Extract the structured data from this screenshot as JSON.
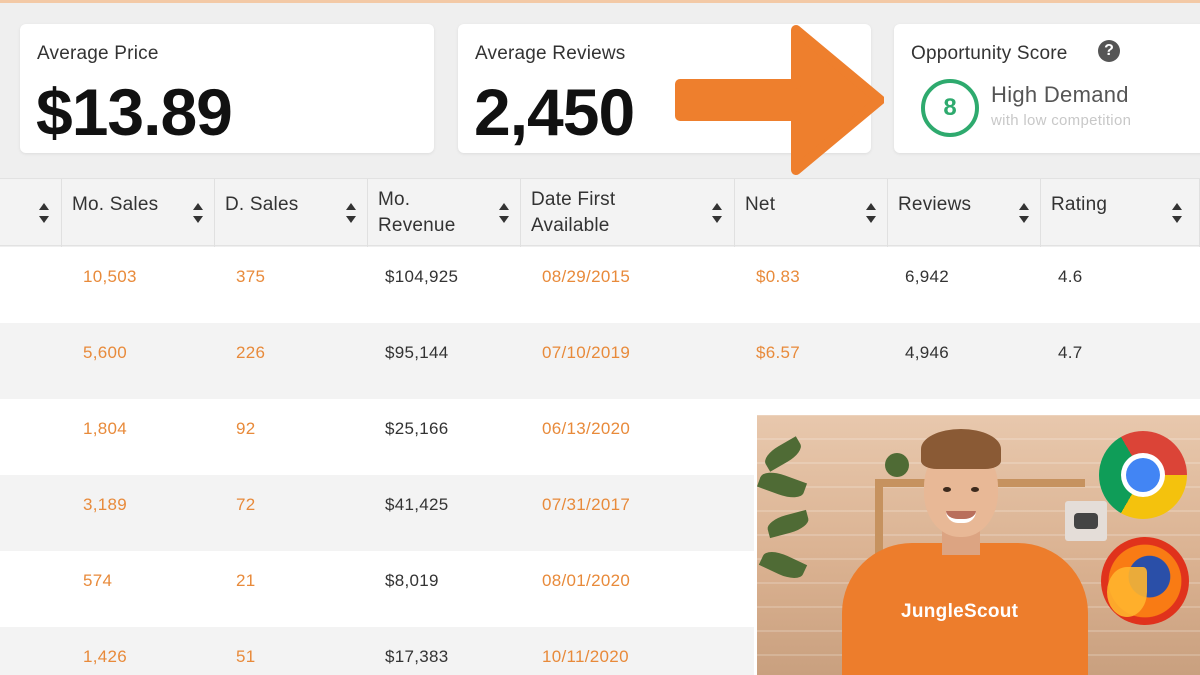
{
  "cards": {
    "average_price": {
      "label": "Average Price",
      "value": "$13.89"
    },
    "average_reviews": {
      "label": "Average Reviews",
      "value": "2,450"
    },
    "opportunity": {
      "label": "Opportunity Score",
      "help": "?",
      "score": "8",
      "title": "High Demand",
      "subtitle": "with low competition",
      "accent": "#2eaa6e"
    }
  },
  "arrow_color": "#ee7f2d",
  "table": {
    "columns": [
      {
        "key": "blank",
        "label": ""
      },
      {
        "key": "mo_sales",
        "label": "Mo. Sales"
      },
      {
        "key": "d_sales",
        "label": "D. Sales"
      },
      {
        "key": "mo_revenue",
        "label_line1": "Mo.",
        "label_line2": "Revenue"
      },
      {
        "key": "date_first",
        "label_line1": "Date First",
        "label_line2": "Available"
      },
      {
        "key": "net",
        "label": "Net"
      },
      {
        "key": "reviews",
        "label": "Reviews"
      },
      {
        "key": "rating",
        "label": "Rating"
      }
    ],
    "rows": [
      {
        "mo_sales": "10,503",
        "d_sales": "375",
        "mo_revenue": "$104,925",
        "date_first": "08/29/2015",
        "net": "$0.83",
        "reviews": "6,942",
        "rating": "4.6"
      },
      {
        "mo_sales": "5,600",
        "d_sales": "226",
        "mo_revenue": "$95,144",
        "date_first": "07/10/2019",
        "net": "$6.57",
        "reviews": "4,946",
        "rating": "4.7"
      },
      {
        "mo_sales": "1,804",
        "d_sales": "92",
        "mo_revenue": "$25,166",
        "date_first": "06/13/2020"
      },
      {
        "mo_sales": "3,189",
        "d_sales": "72",
        "mo_revenue": "$41,425",
        "date_first": "07/31/2017"
      },
      {
        "mo_sales": "574",
        "d_sales": "21",
        "mo_revenue": "$8,019",
        "date_first": "08/01/2020"
      },
      {
        "mo_sales": "1,426",
        "d_sales": "51",
        "mo_revenue": "$17,383",
        "date_first": "10/11/2020"
      }
    ]
  },
  "video": {
    "shirt_text": "JungleScout",
    "icons": [
      "chrome-icon",
      "firefox-icon",
      "youtube-icon"
    ]
  }
}
